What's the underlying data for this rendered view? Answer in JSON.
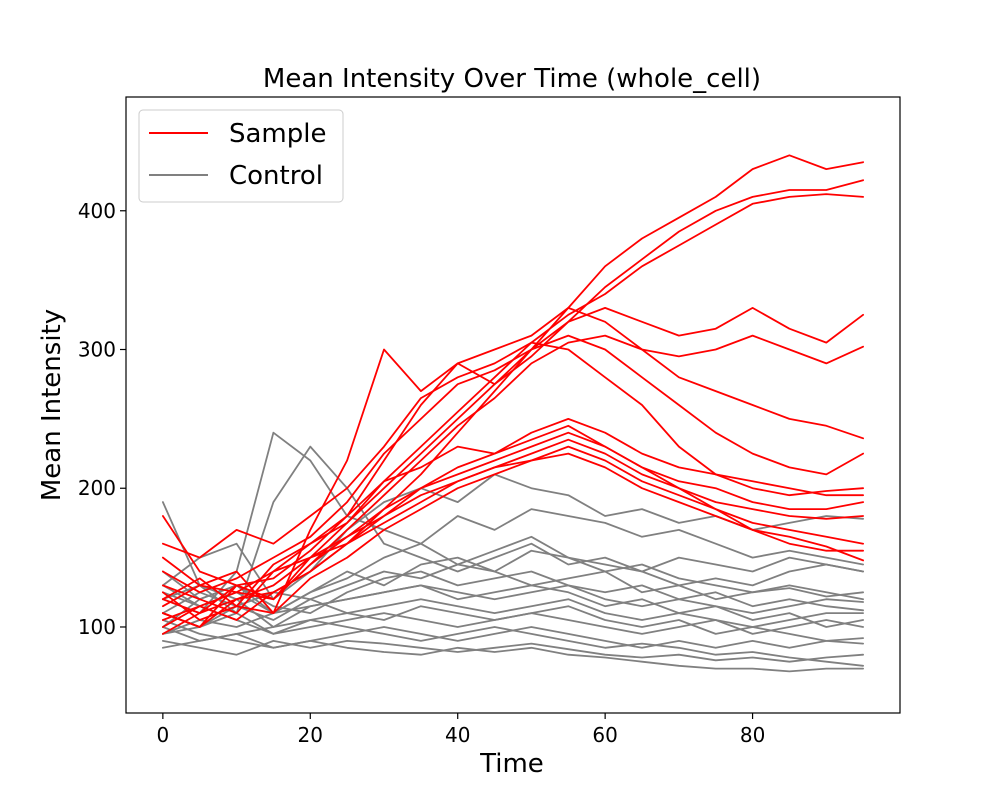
{
  "chart_data": {
    "type": "line",
    "title": "Mean Intensity Over Time (whole_cell)",
    "xlabel": "Time",
    "ylabel": "Mean Intensity",
    "xlim": [
      -5,
      100
    ],
    "ylim": [
      38,
      482
    ],
    "x_ticks": [
      0,
      20,
      40,
      60,
      80
    ],
    "y_ticks": [
      100,
      200,
      300,
      400
    ],
    "grid": false,
    "legend_position": "top-left",
    "legend": [
      {
        "label": "Sample",
        "color": "#ff0000"
      },
      {
        "label": "Control",
        "color": "#808080"
      }
    ],
    "x": [
      0,
      5,
      10,
      15,
      20,
      25,
      30,
      35,
      40,
      45,
      50,
      55,
      60,
      65,
      70,
      75,
      80,
      85,
      90,
      95
    ],
    "series": [
      {
        "group": "Sample",
        "color": "#ff0000",
        "values": [
          120,
          110,
          120,
          125,
          140,
          160,
          185,
          210,
          240,
          270,
          300,
          330,
          360,
          380,
          395,
          410,
          430,
          440,
          430,
          435
        ]
      },
      {
        "group": "Sample",
        "color": "#ff0000",
        "values": [
          110,
          100,
          130,
          120,
          150,
          175,
          200,
          225,
          250,
          275,
          300,
          320,
          345,
          365,
          385,
          400,
          410,
          415,
          415,
          422
        ]
      },
      {
        "group": "Sample",
        "color": "#ff0000",
        "values": [
          130,
          120,
          110,
          140,
          160,
          180,
          205,
          230,
          255,
          280,
          305,
          325,
          340,
          360,
          375,
          390,
          405,
          410,
          412,
          410
        ]
      },
      {
        "group": "Sample",
        "color": "#ff0000",
        "values": [
          150,
          130,
          140,
          110,
          170,
          220,
          300,
          270,
          290,
          275,
          295,
          320,
          330,
          320,
          310,
          315,
          330,
          315,
          305,
          325
        ]
      },
      {
        "group": "Sample",
        "color": "#ff0000",
        "values": [
          105,
          115,
          125,
          120,
          145,
          170,
          195,
          220,
          245,
          265,
          290,
          305,
          310,
          300,
          295,
          300,
          310,
          300,
          290,
          302
        ]
      },
      {
        "group": "Sample",
        "color": "#ff0000",
        "values": [
          95,
          110,
          130,
          135,
          155,
          180,
          220,
          260,
          290,
          300,
          310,
          330,
          320,
          300,
          280,
          270,
          260,
          250,
          245,
          236
        ]
      },
      {
        "group": "Sample",
        "color": "#ff0000",
        "values": [
          140,
          125,
          135,
          150,
          165,
          190,
          225,
          250,
          275,
          285,
          300,
          310,
          300,
          280,
          260,
          240,
          225,
          215,
          210,
          225
        ]
      },
      {
        "group": "Sample",
        "color": "#ff0000",
        "values": [
          160,
          150,
          170,
          160,
          180,
          200,
          230,
          265,
          280,
          290,
          305,
          300,
          280,
          260,
          230,
          210,
          200,
          195,
          198,
          200
        ]
      },
      {
        "group": "Sample",
        "color": "#ff0000",
        "values": [
          120,
          135,
          115,
          145,
          160,
          175,
          205,
          215,
          230,
          225,
          240,
          250,
          240,
          225,
          215,
          210,
          205,
          200,
          195,
          195
        ]
      },
      {
        "group": "Sample",
        "color": "#ff0000",
        "values": [
          110,
          100,
          120,
          130,
          150,
          165,
          185,
          200,
          210,
          220,
          230,
          240,
          230,
          215,
          205,
          200,
          190,
          185,
          185,
          190
        ]
      },
      {
        "group": "Sample",
        "color": "#ff0000",
        "values": [
          100,
          115,
          105,
          125,
          140,
          160,
          180,
          195,
          205,
          215,
          225,
          235,
          225,
          210,
          200,
          190,
          185,
          180,
          178,
          180
        ]
      },
      {
        "group": "Sample",
        "color": "#ff0000",
        "values": [
          125,
          105,
          115,
          110,
          135,
          150,
          170,
          185,
          200,
          210,
          220,
          230,
          220,
          205,
          195,
          185,
          175,
          170,
          165,
          160
        ]
      },
      {
        "group": "Sample",
        "color": "#ff0000",
        "values": [
          180,
          140,
          130,
          120,
          145,
          165,
          180,
          200,
          215,
          225,
          235,
          245,
          230,
          215,
          200,
          185,
          170,
          160,
          155,
          155
        ]
      },
      {
        "group": "Sample",
        "color": "#ff0000",
        "values": [
          115,
          130,
          125,
          140,
          150,
          160,
          175,
          190,
          205,
          215,
          220,
          225,
          215,
          200,
          190,
          180,
          170,
          165,
          158,
          148
        ]
      },
      {
        "group": "Control",
        "color": "#808080",
        "values": [
          190,
          130,
          110,
          190,
          230,
          200,
          160,
          150,
          140,
          150,
          160,
          145,
          150,
          140,
          130,
          135,
          130,
          140,
          145,
          140
        ]
      },
      {
        "group": "Control",
        "color": "#808080",
        "values": [
          120,
          110,
          140,
          240,
          220,
          180,
          170,
          160,
          180,
          170,
          185,
          180,
          175,
          165,
          170,
          160,
          150,
          155,
          150,
          145
        ]
      },
      {
        "group": "Control",
        "color": "#808080",
        "values": [
          130,
          150,
          160,
          120,
          140,
          170,
          190,
          200,
          190,
          210,
          200,
          195,
          180,
          185,
          175,
          180,
          170,
          175,
          180,
          178
        ]
      },
      {
        "group": "Control",
        "color": "#808080",
        "values": [
          100,
          120,
          130,
          110,
          125,
          140,
          130,
          145,
          150,
          140,
          155,
          150,
          145,
          140,
          150,
          145,
          140,
          150,
          145,
          140
        ]
      },
      {
        "group": "Control",
        "color": "#808080",
        "values": [
          110,
          100,
          115,
          125,
          120,
          130,
          140,
          135,
          145,
          140,
          130,
          135,
          140,
          125,
          130,
          120,
          125,
          130,
          125,
          120
        ]
      },
      {
        "group": "Control",
        "color": "#808080",
        "values": [
          95,
          105,
          100,
          110,
          115,
          120,
          125,
          130,
          125,
          120,
          125,
          130,
          120,
          115,
          120,
          115,
          110,
          115,
          120,
          118
        ]
      },
      {
        "group": "Control",
        "color": "#808080",
        "values": [
          85,
          90,
          95,
          100,
          105,
          110,
          115,
          120,
          115,
          110,
          115,
          120,
          110,
          105,
          110,
          105,
          100,
          105,
          110,
          110
        ]
      },
      {
        "group": "Control",
        "color": "#808080",
        "values": [
          125,
          115,
          105,
          95,
          100,
          105,
          110,
          105,
          100,
          105,
          110,
          105,
          100,
          95,
          100,
          105,
          95,
          100,
          105,
          100
        ]
      },
      {
        "group": "Control",
        "color": "#808080",
        "values": [
          105,
          95,
          90,
          85,
          90,
          95,
          100,
          95,
          90,
          95,
          100,
          95,
          90,
          85,
          90,
          85,
          90,
          85,
          90,
          92
        ]
      },
      {
        "group": "Control",
        "color": "#808080",
        "values": [
          90,
          85,
          80,
          90,
          85,
          90,
          88,
          85,
          82,
          85,
          88,
          84,
          80,
          78,
          80,
          76,
          78,
          75,
          78,
          80
        ]
      },
      {
        "group": "Control",
        "color": "#808080",
        "values": [
          100,
          90,
          95,
          85,
          90,
          85,
          82,
          80,
          85,
          82,
          85,
          80,
          78,
          75,
          72,
          70,
          70,
          68,
          70,
          70
        ]
      },
      {
        "group": "Control",
        "color": "#808080",
        "values": [
          120,
          130,
          120,
          100,
          115,
          120,
          125,
          130,
          120,
          125,
          130,
          125,
          115,
          120,
          110,
          115,
          105,
          110,
          100,
          105
        ]
      },
      {
        "group": "Control",
        "color": "#808080",
        "values": [
          140,
          120,
          130,
          115,
          110,
          125,
          135,
          140,
          130,
          135,
          140,
          130,
          125,
          130,
          120,
          125,
          115,
          120,
          115,
          112
        ]
      },
      {
        "group": "Control",
        "color": "#808080",
        "values": [
          110,
          125,
          115,
          105,
          120,
          110,
          105,
          115,
          110,
          105,
          110,
          115,
          105,
          100,
          105,
          95,
          100,
          95,
          90,
          88
        ]
      },
      {
        "group": "Control",
        "color": "#808080",
        "values": [
          95,
          100,
          110,
          95,
          105,
          100,
          95,
          90,
          95,
          100,
          95,
          90,
          85,
          88,
          85,
          80,
          82,
          78,
          75,
          72
        ]
      },
      {
        "group": "Control",
        "color": "#808080",
        "values": [
          130,
          115,
          125,
          110,
          125,
          135,
          150,
          160,
          145,
          155,
          165,
          150,
          140,
          145,
          135,
          130,
          125,
          128,
          122,
          125
        ]
      }
    ]
  }
}
